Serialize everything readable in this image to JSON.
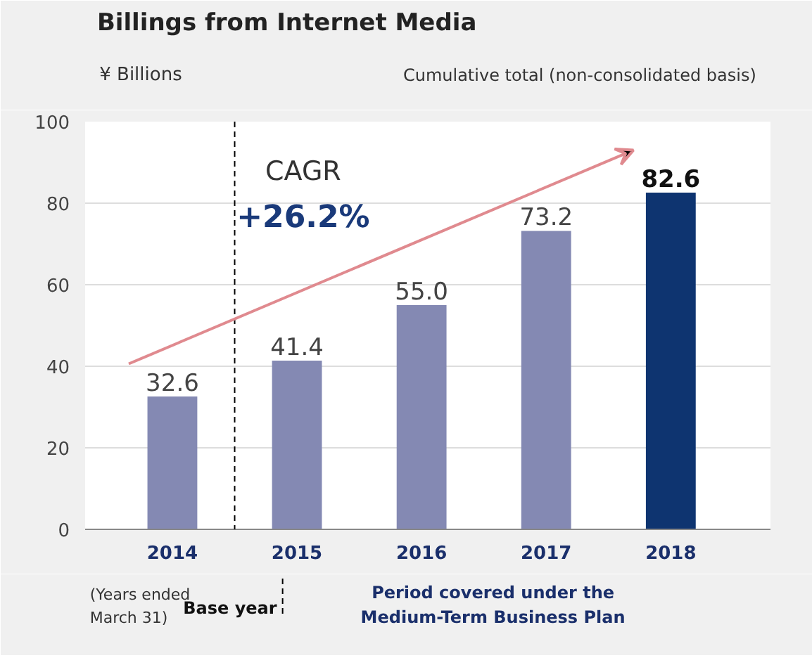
{
  "chart_data": {
    "type": "bar",
    "title": "Billings from Internet Media",
    "ylabel": "¥ Billions",
    "x": [
      2014,
      2015,
      2016,
      2017,
      2018
    ],
    "values": [
      32.6,
      41.4,
      55.0,
      73.2,
      82.6
    ],
    "colors": [
      "#8489b3",
      "#8489b3",
      "#8489b3",
      "#8489b3",
      "#0e3470"
    ],
    "value_labels": [
      "32.6",
      "41.4",
      "55.0",
      "73.2",
      "82.6"
    ],
    "xlim": [
      2013.3,
      2018.8
    ],
    "xticks": [
      2014,
      2015,
      2016,
      2017,
      2018
    ],
    "ylim": [
      0,
      100
    ],
    "yticks": [
      0,
      20,
      40,
      60,
      80,
      100
    ],
    "grid": "y",
    "ref_lines": [
      {
        "axis": "x",
        "value": 2014.5,
        "label": null,
        "line_style": "dashed",
        "color": "#000000"
      }
    ],
    "annotations": [
      "CAGR",
      "+26.2%",
      "Cumulative total (non-consolidated basis)",
      "(Years ended\nMarch 31)",
      "Base year",
      "Period covered under the\nMedium-Term Business Plan"
    ]
  }
}
